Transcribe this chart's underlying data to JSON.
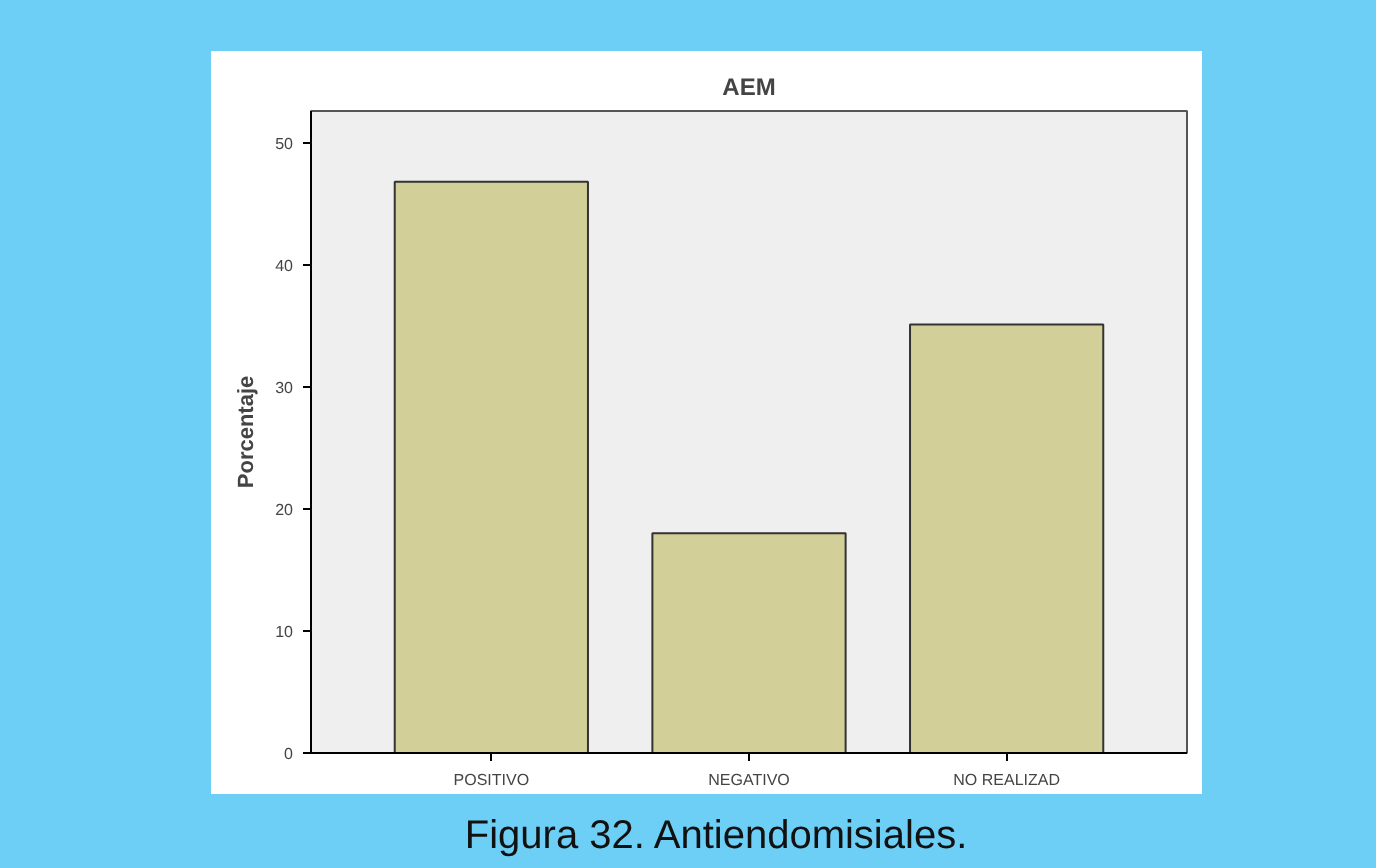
{
  "chart_data": {
    "type": "bar",
    "title": "AEM",
    "ylabel": "Porcentaje",
    "categories": [
      "POSITIVO",
      "NEGATIVO",
      "NO REALIZAD"
    ],
    "values": [
      46.8,
      18.0,
      35.1
    ],
    "color": "#d3cf98",
    "ylim": [
      0,
      52.6
    ],
    "yticks": [
      0,
      10,
      20,
      30,
      40,
      50
    ],
    "grid": false,
    "annotations": [
      "Figura 32. Antiendomisiales."
    ]
  }
}
